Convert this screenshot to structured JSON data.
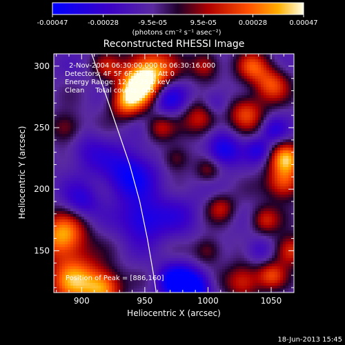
{
  "chart_data": {
    "type": "heatmap",
    "title": "Reconstructed RHESSI Image",
    "xlabel": "Heliocentric X (arcsec)",
    "ylabel": "Heliocentric Y (arcsec)",
    "xlim": [
      878,
      1068
    ],
    "ylim": [
      116,
      310
    ],
    "xticks": [
      900,
      950,
      1000,
      1050
    ],
    "yticks": [
      150,
      200,
      250,
      300
    ],
    "colorbar": {
      "range": [
        -0.00047,
        0.00047
      ],
      "tick_labels": [
        "-0.00047",
        "-0.00028",
        "-9.5e-05",
        "9.5e-05",
        "0.00028",
        "0.00047"
      ],
      "unit_label": "(photons cm⁻² s⁻¹ asec⁻²)"
    },
    "annotations": [
      "2-Nov-2004 06:30:00.000 to 06:30:16.000",
      "Detectors: 4F 5F 6F 7F 8F, Att 0",
      "Energy Range: 12.0 - 25.0 keV",
      "Clean     Total counts: 405."
    ],
    "peak_label": "Position of Peak = [886,160]",
    "peak": [
      886,
      160
    ],
    "limb_points": [
      [
        908,
        310
      ],
      [
        918,
        280
      ],
      [
        928,
        250
      ],
      [
        938,
        220
      ],
      [
        946,
        190
      ],
      [
        952,
        160
      ],
      [
        957,
        130
      ],
      [
        959,
        116
      ]
    ],
    "blobs": [
      [
        955,
        295,
        14,
        0.00045
      ],
      [
        945,
        283,
        11,
        0.0004
      ],
      [
        935,
        270,
        9,
        0.00032
      ],
      [
        962,
        250,
        8,
        0.00022
      ],
      [
        995,
        258,
        10,
        0.00028
      ],
      [
        1030,
        262,
        10,
        0.0003
      ],
      [
        1050,
        285,
        10,
        0.00032
      ],
      [
        1035,
        300,
        9,
        0.00028
      ],
      [
        998,
        300,
        8,
        0.00026
      ],
      [
        1062,
        225,
        9,
        0.0004
      ],
      [
        1060,
        205,
        10,
        0.00036
      ],
      [
        1065,
        150,
        9,
        0.00033
      ],
      [
        1045,
        175,
        8,
        0.00026
      ],
      [
        1028,
        125,
        10,
        0.0003
      ],
      [
        1050,
        130,
        8,
        0.00028
      ],
      [
        1010,
        185,
        8,
        0.00022
      ],
      [
        1000,
        150,
        8,
        0.0002
      ],
      [
        885,
        162,
        13,
        0.00045
      ],
      [
        895,
        125,
        15,
        0.00043
      ],
      [
        918,
        120,
        10,
        0.00036
      ],
      [
        888,
        250,
        9,
        0.00022
      ],
      [
        975,
        225,
        8,
        0.0002
      ],
      [
        920,
        300,
        8,
        0.00018
      ],
      [
        1000,
        215,
        7,
        0.00016
      ],
      [
        938,
        212,
        14,
        -0.00032
      ],
      [
        948,
        175,
        12,
        -0.00028
      ],
      [
        975,
        125,
        10,
        -0.00038
      ],
      [
        990,
        120,
        9,
        -0.00034
      ],
      [
        968,
        275,
        10,
        -0.0003
      ],
      [
        1012,
        232,
        9,
        -0.0003
      ],
      [
        1040,
        232,
        7,
        -0.0002
      ],
      [
        900,
        190,
        10,
        -0.0002
      ],
      [
        975,
        180,
        14,
        -0.00012
      ],
      [
        1005,
        270,
        8,
        -0.00018
      ],
      [
        905,
        230,
        12,
        -0.00014
      ],
      [
        1052,
        248,
        7,
        -0.00018
      ],
      [
        1040,
        150,
        8,
        -0.00016
      ]
    ]
  },
  "footer": {
    "timestamp": "18-Jun-2013 15:45"
  }
}
